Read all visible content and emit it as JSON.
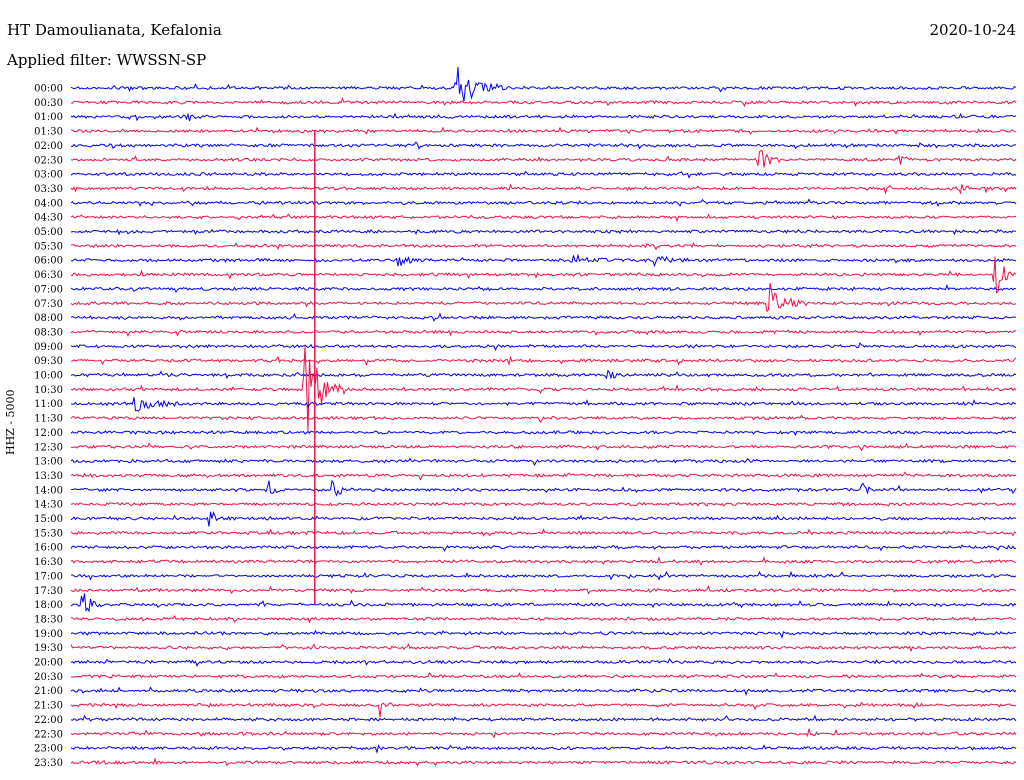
{
  "header": {
    "station": "HT Damoulianata, Kefalonia",
    "filter": "Applied filter: WWSSN-SP",
    "date": "2020-10-24"
  },
  "chart_data": {
    "type": "line",
    "title": "HT Damoulianata, Kefalonia",
    "subtitle": "Applied filter: WWSSN-SP",
    "ylabel": "HHZ - 5000",
    "colors": [
      "#0000ee",
      "#ee1144"
    ],
    "rows": [
      {
        "label": "00:00"
      },
      {
        "label": "00:30"
      },
      {
        "label": "01:00"
      },
      {
        "label": "01:30"
      },
      {
        "label": "02:00"
      },
      {
        "label": "02:30"
      },
      {
        "label": "03:00"
      },
      {
        "label": "03:30"
      },
      {
        "label": "04:00"
      },
      {
        "label": "04:30"
      },
      {
        "label": "05:00"
      },
      {
        "label": "05:30"
      },
      {
        "label": "06:00"
      },
      {
        "label": "06:30"
      },
      {
        "label": "07:00"
      },
      {
        "label": "07:30"
      },
      {
        "label": "08:00"
      },
      {
        "label": "08:30"
      },
      {
        "label": "09:00"
      },
      {
        "label": "09:30"
      },
      {
        "label": "10:00"
      },
      {
        "label": "10:30"
      },
      {
        "label": "11:00"
      },
      {
        "label": "11:30"
      },
      {
        "label": "12:00"
      },
      {
        "label": "12:30"
      },
      {
        "label": "13:00"
      },
      {
        "label": "13:30"
      },
      {
        "label": "14:00"
      },
      {
        "label": "14:30"
      },
      {
        "label": "15:00"
      },
      {
        "label": "15:30"
      },
      {
        "label": "16:00"
      },
      {
        "label": "16:30"
      },
      {
        "label": "17:00"
      },
      {
        "label": "17:30"
      },
      {
        "label": "18:00"
      },
      {
        "label": "18:30"
      },
      {
        "label": "19:00"
      },
      {
        "label": "19:30"
      },
      {
        "label": "20:00"
      },
      {
        "label": "20:30"
      },
      {
        "label": "21:00"
      },
      {
        "label": "21:30"
      },
      {
        "label": "22:00"
      },
      {
        "label": "22:30"
      },
      {
        "label": "23:00"
      },
      {
        "label": "23:30"
      }
    ],
    "events": [
      {
        "row": 0,
        "t": 0.41,
        "amp": 1.0,
        "dur": 0.05
      },
      {
        "row": 2,
        "t": 0.125,
        "amp": 0.2,
        "dur": 0.01
      },
      {
        "row": 5,
        "t": 0.73,
        "amp": 0.6,
        "dur": 0.02
      },
      {
        "row": 5,
        "t": 0.88,
        "amp": 0.15,
        "dur": 0.015
      },
      {
        "row": 7,
        "t": 0.86,
        "amp": 0.25,
        "dur": 0.015
      },
      {
        "row": 7,
        "t": 0.94,
        "amp": 0.2,
        "dur": 0.02
      },
      {
        "row": 12,
        "t": 0.35,
        "amp": 0.25,
        "dur": 0.02
      },
      {
        "row": 12,
        "t": 0.53,
        "amp": 0.3,
        "dur": 0.04
      },
      {
        "row": 12,
        "t": 0.62,
        "amp": 0.25,
        "dur": 0.03
      },
      {
        "row": 13,
        "t": 0.98,
        "amp": 0.9,
        "dur": 0.02
      },
      {
        "row": 15,
        "t": 0.74,
        "amp": 0.9,
        "dur": 0.04
      },
      {
        "row": 20,
        "t": 0.57,
        "amp": 0.3,
        "dur": 0.01
      },
      {
        "row": 21,
        "t": 0.25,
        "amp": 2.0,
        "dur": 0.04
      },
      {
        "row": 22,
        "t": 0.07,
        "amp": 0.3,
        "dur": 0.06
      },
      {
        "row": 28,
        "t": 0.21,
        "amp": 0.3,
        "dur": 0.02
      },
      {
        "row": 28,
        "t": 0.28,
        "amp": 0.4,
        "dur": 0.02
      },
      {
        "row": 28,
        "t": 0.84,
        "amp": 0.3,
        "dur": 0.01
      },
      {
        "row": 30,
        "t": 0.15,
        "amp": 0.4,
        "dur": 0.01
      },
      {
        "row": 36,
        "t": 0.015,
        "amp": 0.5,
        "dur": 0.02
      },
      {
        "row": 43,
        "t": 0.33,
        "amp": 0.5,
        "dur": 0.01
      },
      {
        "row": 45,
        "t": 0.78,
        "amp": 0.3,
        "dur": 0.01
      }
    ],
    "long_event": {
      "t": 0.258,
      "start_row": 3,
      "end_row": 36
    }
  }
}
